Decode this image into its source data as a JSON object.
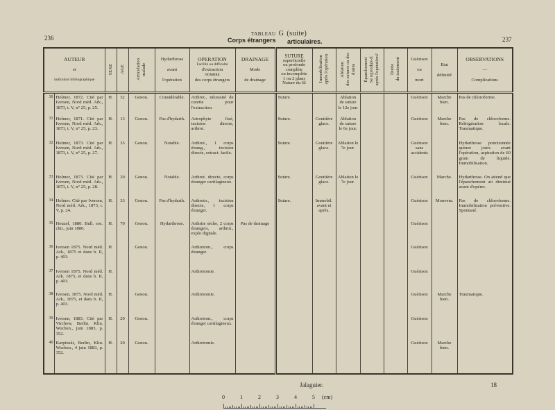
{
  "page": {
    "left_number": "236",
    "right_number": "237",
    "title_small": "TABLEAU",
    "title_letter": "G",
    "title_suffix": "(suite)",
    "subtitle_left": "Corps étrangers",
    "subtitle_right": "articulaires."
  },
  "headers": {
    "auteur": [
      "AUTEUR",
      "et",
      "indication bibliographique"
    ],
    "sexe": "SEXE",
    "age": "AGE",
    "articulation": [
      "Articulation",
      "malade"
    ],
    "hydarthrose": [
      "Hydarthrose",
      "avant",
      "l'opération"
    ],
    "operation": [
      "OPERATION",
      "Facilité ou difficulté",
      "d'extraction",
      "NOMBRE",
      "des corps étrangers"
    ],
    "drainage": [
      "DRAINAGE",
      "Mode",
      "de drainage"
    ],
    "suture": [
      "SUTURE",
      "superficielle",
      "ou profonde",
      "complète",
      "ou incomplète",
      "1 ou 2 plans",
      "Nature du fil"
    ],
    "immobilisation": [
      "Immobilisation",
      "après l'opération"
    ],
    "ablation": [
      "Ablation",
      "des sutures ou des",
      "drains"
    ],
    "epanchement": [
      "Épanchement",
      "Se reproduit-il",
      "après l'opération?"
    ],
    "duree": [
      "Durée",
      "du traitement"
    ],
    "guerison": [
      "Guérison",
      "ou",
      "mort"
    ],
    "etat": [
      "Etat",
      "définitif"
    ],
    "observations": [
      "OBSERVATIONS",
      "—",
      "Complications"
    ]
  },
  "rows": [
    {
      "n": "30",
      "auteur": "Holmer, 1872. Cité par Iversen, Nord méd. Ark., 1873, t. V, n° 25, p. 25.",
      "sexe": "H.",
      "age": "32",
      "art": "Genou.",
      "hyd": "Considérable.",
      "op": "Arthrot., nécessité de curette pour l'extraction.",
      "drain": "",
      "sut": "Suture.",
      "immob": "",
      "abl": "Ablation de suture le 12e jour",
      "epan": "",
      "duree": "",
      "guer": "Guérison",
      "etat": "Marche bien.",
      "obs": "Pas de chloroforme."
    },
    {
      "n": "31",
      "auteur": "Holmer, 1871. Cité par Iversen, Nord méd. Ark., 1873, t. V, n° 25, p. 23.",
      "sexe": "H.",
      "age": "13",
      "art": "Genou.",
      "hyd": "Pas d'hydarth.",
      "op": "Artrophyte fixé, incision directe, arthrot.",
      "drain": "",
      "sut": "Suture.",
      "immob": "Gouttière glace.",
      "abl": "Ablation de suture le 6e jour.",
      "epan": "",
      "duree": "",
      "guer": "Guérison",
      "etat": "Marche bien.",
      "obs": "Pas de chloroforme. Réfrigération locale. Traumatique."
    },
    {
      "n": "32",
      "auteur": "Holmer, 1873. Cité par Iversen, Nord méd. Ark., 1873, t. V, n° 25, p. 27.",
      "sexe": "H.",
      "age": "35",
      "art": "Genou.",
      "hyd": "Notable.",
      "op": "Arthrot., 1 corps étrang., incision directe, extract. facile.",
      "drain": "",
      "sut": "Suture.",
      "immob": "Gouttière glace.",
      "abl": "Ablation le 7e jour.",
      "epan": "",
      "duree": "",
      "guer": "Guérison sans accidents",
      "etat": "",
      "obs": "Hydarthrose ponctionnée quinze jours avant l'opération, aspiration de 60 gram de liquide. Immobilisation."
    },
    {
      "n": "33",
      "auteur": "Holmer, 1873. Cité par Iversen, Nord méd. Ark., 1873, t. V, n° 25, p. 28.",
      "sexe": "H.",
      "age": "20",
      "art": "Genou.",
      "hyd": "Notable.",
      "op": "Arthrot. directe, corps étranger cartilagineux.",
      "drain": "",
      "sut": "Suture.",
      "immob": "Gouttière glace.",
      "abl": "Ablation le 7e jour.",
      "epan": "",
      "duree": "",
      "guer": "Guérison",
      "etat": "Marche.",
      "obs": "Hydarthrose. On attend que l'épanchement ait diminué avant d'opérer."
    },
    {
      "n": "34",
      "auteur": "Holmer. Cité par Iversen, Nord méd. Ark., 1873, t. V, p. 24.",
      "sexe": "H.",
      "age": "33",
      "art": "Genou.",
      "hyd": "Pas d'hydarth.",
      "op": "Arthroto., incision directe, 1 corps étranger.",
      "drain": "",
      "sut": "Suture.",
      "immob": "Immobil. avant et après.",
      "abl": "",
      "epan": "",
      "duree": "",
      "guer": "Guérison",
      "etat": "Mouvem.",
      "obs": "Pas de chloroforme. Immobilisation préventive. Spontané."
    },
    {
      "n": "35",
      "auteur": "Houzel, 1880. Bull. soc. chir., juin 1880.",
      "sexe": "H.",
      "age": "70",
      "art": "Genou.",
      "hyd": "Hydarthrose.",
      "op": "Arthrite sèche, 2 corps étrangers, arthrot., explo digitale.",
      "drain": "Pas de drainage",
      "sut": "",
      "immob": "",
      "abl": "",
      "epan": "",
      "duree": "",
      "guer": "Guérison",
      "etat": "",
      "obs": ""
    },
    {
      "n": "36",
      "auteur": "Iversen 1875. Nord méd. Ark., 1875 et dans b. II, p. 403.",
      "sexe": "H.",
      "age": "",
      "art": "Genou.",
      "hyd": "",
      "op": "Arthrotom., corps étranger.",
      "drain": "",
      "sut": "",
      "immob": "",
      "abl": "",
      "epan": "",
      "duree": "",
      "guer": "Guérison",
      "etat": "",
      "obs": ""
    },
    {
      "n": "37",
      "auteur": "Iversen 1875. Nord méd. Ark. 1875, et dans b. II, p. 403.",
      "sexe": "H.",
      "age": "",
      "art": "",
      "hyd": "",
      "op": "Arthrotomie.",
      "drain": "",
      "sut": "",
      "immob": "",
      "abl": "",
      "epan": "",
      "duree": "",
      "guer": "Guérison",
      "etat": "",
      "obs": ""
    },
    {
      "n": "38",
      "auteur": "Iversen, 1875. Nord méd. Ark., 1875, et dans b. II, p. 403.",
      "sexe": "H.",
      "age": "",
      "art": "Genou.",
      "hyd": "",
      "op": "Arthrotomie.",
      "drain": "",
      "sut": "",
      "immob": "",
      "abl": "",
      "epan": "",
      "duree": "",
      "guer": "Guérison",
      "etat": "Marche bien.",
      "obs": "Traumatique."
    },
    {
      "n": "39",
      "auteur": "Iversen, 1883. Cité par Virchow, Berlin. Klin. Wochen., juin 1883, p. 352.",
      "sexe": "H.",
      "age": "20",
      "art": "Genou.",
      "hyd": "",
      "op": "Arthrotom., corps étranger cartilagineux.",
      "drain": "",
      "sut": "",
      "immob": "",
      "abl": "",
      "epan": "",
      "duree": "",
      "guer": "Guérison",
      "etat": "",
      "obs": ""
    },
    {
      "n": "40",
      "auteur": "Karpinski, Berlin, Klin. Wochen., 4 juin 1883, p. 352.",
      "sexe": "H.",
      "age": "20",
      "art": "Genou.",
      "hyd": "",
      "op": "Arthrotomie.",
      "drain": "",
      "sut": "",
      "immob": "",
      "abl": "",
      "epan": "",
      "duree": "",
      "guer": "Guérison",
      "etat": "Marche bien.",
      "obs": ""
    }
  ],
  "footer": {
    "author": "Jalaguier.",
    "signature": "18"
  },
  "scale": {
    "labels": [
      "0",
      "1",
      "2",
      "3",
      "4",
      "5"
    ],
    "unit": "(cm)"
  }
}
